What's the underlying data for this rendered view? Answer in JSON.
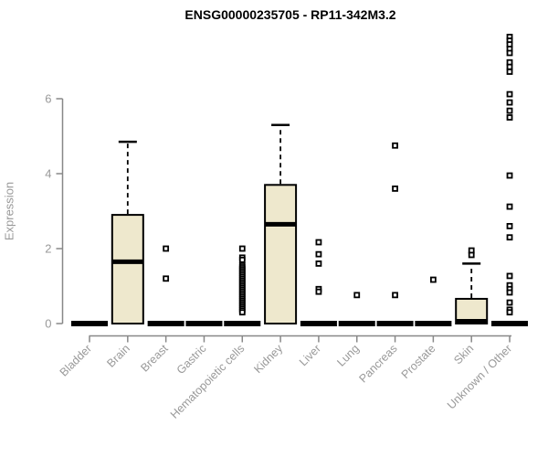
{
  "chart_data": {
    "type": "boxplot",
    "title": "ENSG00000235705 - RP11-342M3.2",
    "xlabel": "",
    "ylabel": "Expression",
    "yticks": [
      0,
      2,
      4,
      6
    ],
    "ylim": [
      0,
      7.7
    ],
    "grid": false,
    "legend": "none",
    "categories": [
      "Bladder",
      "Brain",
      "Breast",
      "Gastric",
      "Hematopoietic cells",
      "Kidney",
      "Liver",
      "Lung",
      "Pancreas",
      "Prostate",
      "Skin",
      "Unknown / Other"
    ],
    "boxes": [
      {
        "category": "Bladder",
        "q1": 0,
        "median": 0,
        "q3": 0,
        "whisker_low": 0,
        "whisker_high": 0,
        "outliers": []
      },
      {
        "category": "Brain",
        "q1": 0,
        "median": 1.65,
        "q3": 2.9,
        "whisker_low": 0,
        "whisker_high": 4.85,
        "outliers": []
      },
      {
        "category": "Breast",
        "q1": 0,
        "median": 0,
        "q3": 0,
        "whisker_low": 0,
        "whisker_high": 0,
        "outliers": [
          2.0,
          1.2
        ]
      },
      {
        "category": "Gastric",
        "q1": 0,
        "median": 0,
        "q3": 0,
        "whisker_low": 0,
        "whisker_high": 0,
        "outliers": []
      },
      {
        "category": "Hematopoietic cells",
        "q1": 0,
        "median": 0,
        "q3": 0,
        "whisker_low": 0,
        "whisker_high": 0,
        "outliers": [
          2.0,
          1.76,
          1.7,
          1.55,
          1.5,
          1.45,
          1.4,
          1.35,
          1.3,
          1.25,
          1.2,
          1.15,
          1.1,
          1.05,
          1.0,
          0.95,
          0.9,
          0.85,
          0.8,
          0.75,
          0.7,
          0.65,
          0.6,
          0.55,
          0.5,
          0.45,
          0.4,
          0.35,
          0.3
        ]
      },
      {
        "category": "Kidney",
        "q1": 0,
        "median": 2.65,
        "q3": 3.7,
        "whisker_low": 0,
        "whisker_high": 5.3,
        "outliers": []
      },
      {
        "category": "Liver",
        "q1": 0,
        "median": 0,
        "q3": 0,
        "whisker_low": 0,
        "whisker_high": 0,
        "outliers": [
          2.17,
          1.85,
          1.6,
          0.92,
          0.85
        ]
      },
      {
        "category": "Lung",
        "q1": 0,
        "median": 0,
        "q3": 0,
        "whisker_low": 0,
        "whisker_high": 0,
        "outliers": [
          0.76
        ]
      },
      {
        "category": "Pancreas",
        "q1": 0,
        "median": 0,
        "q3": 0,
        "whisker_low": 0,
        "whisker_high": 0,
        "outliers": [
          4.75,
          3.6,
          0.76
        ]
      },
      {
        "category": "Prostate",
        "q1": 0,
        "median": 0,
        "q3": 0,
        "whisker_low": 0,
        "whisker_high": 0,
        "outliers": [
          1.17
        ]
      },
      {
        "category": "Skin",
        "q1": 0,
        "median": 0,
        "q3": 0.66,
        "whisker_low": 0,
        "whisker_high": 1.6,
        "outliers": [
          1.95,
          1.83
        ]
      },
      {
        "category": "Unknown / Other",
        "q1": 0,
        "median": 0,
        "q3": 0,
        "whisker_low": 0,
        "whisker_high": 0,
        "outliers": [
          7.65,
          7.55,
          7.45,
          7.33,
          7.22,
          6.97,
          6.85,
          6.72,
          6.12,
          5.9,
          5.68,
          5.5,
          3.95,
          3.12,
          2.6,
          2.3,
          1.27,
          1.02,
          0.92,
          0.83,
          0.56,
          0.37,
          0.3
        ]
      }
    ],
    "colors": {
      "box_fill": "#EEE8CD",
      "box_stroke": "#000000",
      "median": "#000000",
      "outlier_stroke": "#000000",
      "axis_line": "#888888",
      "tick_text": "#999999",
      "title_text": "#000000",
      "background": "#ffffff"
    }
  }
}
